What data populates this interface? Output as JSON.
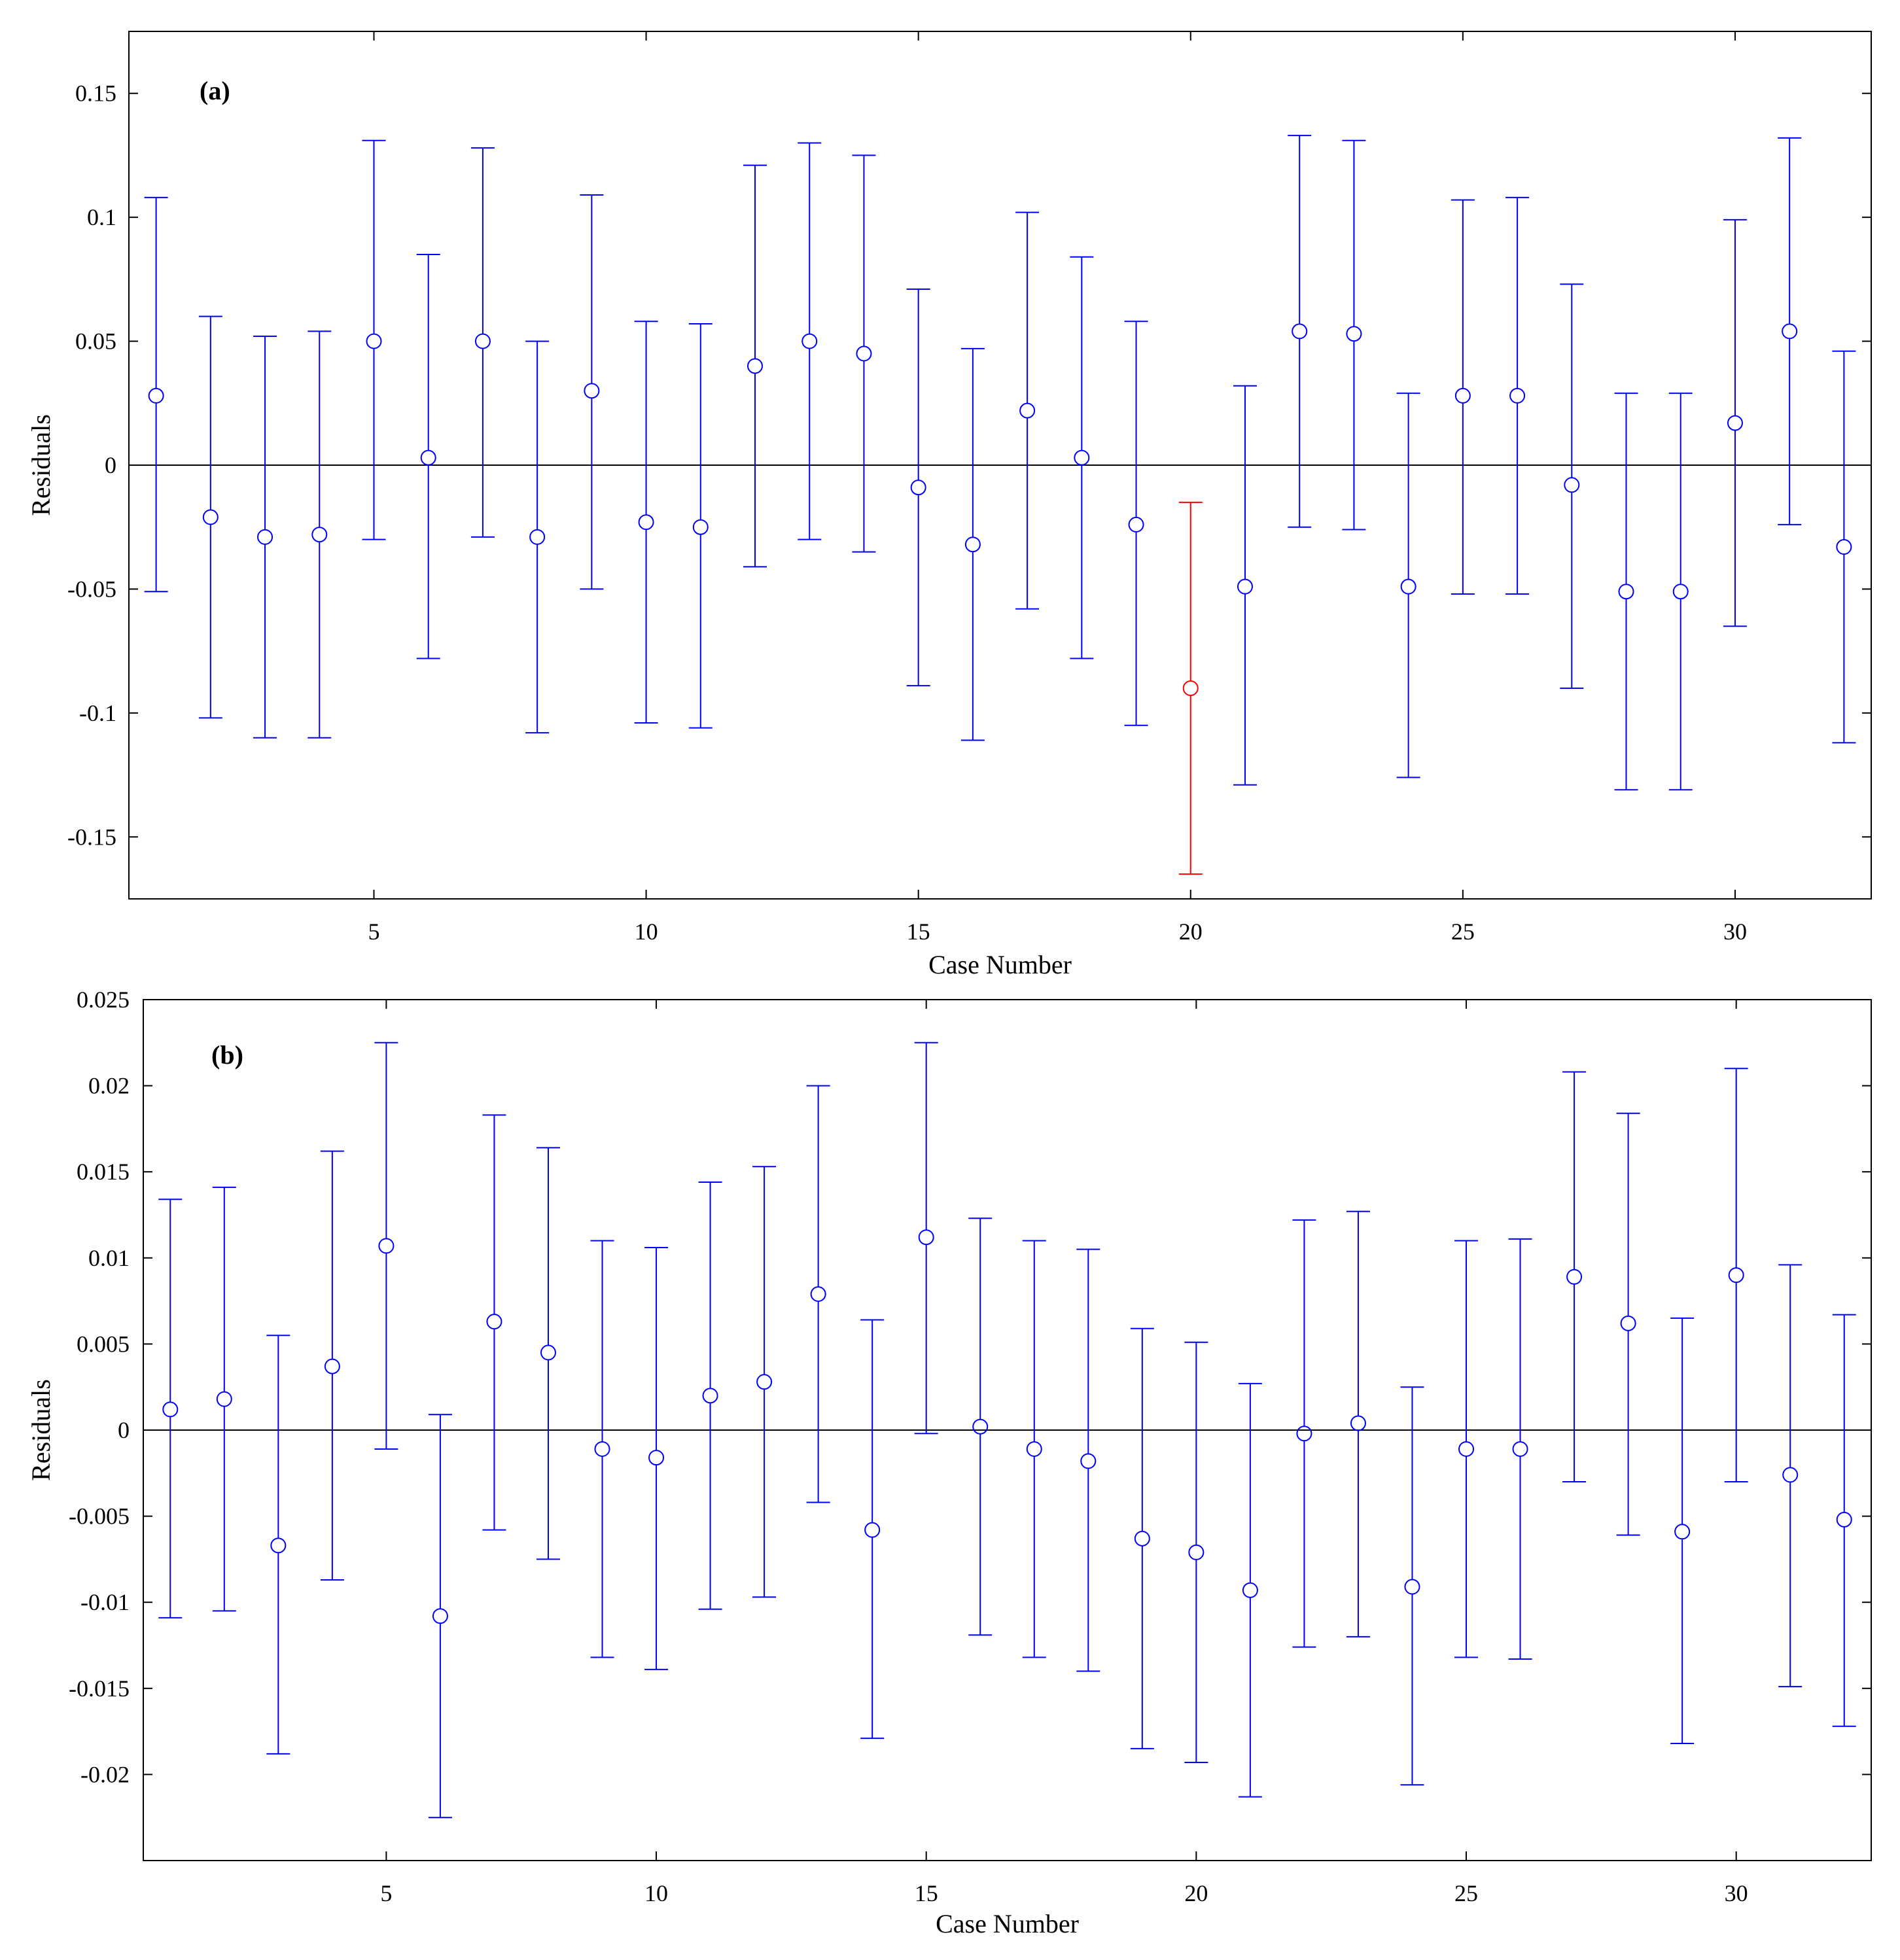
{
  "colors": {
    "series": "#0000ff",
    "outlier": "#ff0000",
    "axis": "#000000",
    "zero_line": "#000000"
  },
  "chart_data": [
    {
      "type": "scatter",
      "subtype": "errorbar",
      "panel_label": "(a)",
      "xlabel": "Case Number",
      "ylabel": "Residuals",
      "xlim": [
        0.5,
        32.5
      ],
      "ylim": [
        -0.175,
        0.175
      ],
      "xticks": [
        5,
        10,
        15,
        20,
        25,
        30
      ],
      "xtick_labels": [
        "5",
        "10",
        "15",
        "20",
        "25",
        "30"
      ],
      "yticks": [
        -0.15,
        -0.1,
        -0.05,
        0,
        0.05,
        0.1,
        0.15
      ],
      "ytick_labels": [
        "-0.15",
        "-0.1",
        "-0.05",
        "0",
        "0.05",
        "0.1",
        "0.15"
      ],
      "zero_line": true,
      "outlier_index": 20,
      "series": [
        {
          "name": "Residuals",
          "x": [
            1,
            2,
            3,
            4,
            5,
            6,
            7,
            8,
            9,
            10,
            11,
            12,
            13,
            14,
            15,
            16,
            17,
            18,
            19,
            20,
            21,
            22,
            23,
            24,
            25,
            26,
            27,
            28,
            29,
            30,
            31,
            32
          ],
          "values": [
            0.028,
            -0.021,
            -0.029,
            -0.028,
            0.05,
            0.003,
            0.05,
            -0.029,
            0.03,
            -0.023,
            -0.025,
            0.04,
            0.05,
            0.045,
            -0.009,
            -0.032,
            0.022,
            0.003,
            -0.024,
            -0.09,
            -0.049,
            0.054,
            0.053,
            -0.049,
            0.028,
            0.028,
            -0.008,
            -0.051,
            -0.051,
            0.017,
            0.054,
            -0.033
          ],
          "lower": [
            -0.051,
            -0.102,
            -0.11,
            -0.11,
            -0.03,
            -0.078,
            -0.029,
            -0.108,
            -0.05,
            -0.104,
            -0.106,
            -0.041,
            -0.03,
            -0.035,
            -0.089,
            -0.111,
            -0.058,
            -0.078,
            -0.105,
            -0.165,
            -0.129,
            -0.025,
            -0.026,
            -0.126,
            -0.052,
            -0.052,
            -0.09,
            -0.131,
            -0.131,
            -0.065,
            -0.024,
            -0.112
          ],
          "upper": [
            0.108,
            0.06,
            0.052,
            0.054,
            0.131,
            0.085,
            0.128,
            0.05,
            0.109,
            0.058,
            0.057,
            0.121,
            0.13,
            0.125,
            0.071,
            0.047,
            0.102,
            0.084,
            0.058,
            -0.015,
            0.032,
            0.133,
            0.131,
            0.029,
            0.107,
            0.108,
            0.073,
            0.029,
            0.029,
            0.099,
            0.132,
            0.046
          ]
        }
      ]
    },
    {
      "type": "scatter",
      "subtype": "errorbar",
      "panel_label": "(b)",
      "xlabel": "Case Number",
      "ylabel": "Residuals",
      "xlim": [
        0.5,
        32.5
      ],
      "ylim": [
        -0.025,
        0.025
      ],
      "xticks": [
        5,
        10,
        15,
        20,
        25,
        30
      ],
      "xtick_labels": [
        "5",
        "10",
        "15",
        "20",
        "25",
        "30"
      ],
      "yticks": [
        -0.02,
        -0.015,
        -0.01,
        -0.005,
        0,
        0.005,
        0.01,
        0.015,
        0.02,
        0.025
      ],
      "ytick_labels": [
        "-0.02",
        "-0.015",
        "-0.01",
        "-0.005",
        "0",
        "0.005",
        "0.01",
        "0.015",
        "0.02",
        "0.025"
      ],
      "zero_line": true,
      "outlier_index": null,
      "series": [
        {
          "name": "Residuals",
          "x": [
            1,
            2,
            3,
            4,
            5,
            6,
            7,
            8,
            9,
            10,
            11,
            12,
            13,
            14,
            15,
            16,
            17,
            18,
            19,
            20,
            21,
            22,
            23,
            24,
            25,
            26,
            27,
            28,
            29,
            30,
            31,
            32
          ],
          "values": [
            0.0012,
            0.0018,
            -0.0067,
            0.0037,
            0.0107,
            -0.0108,
            0.0063,
            0.0045,
            -0.0011,
            -0.0016,
            0.002,
            0.0028,
            0.0079,
            -0.0058,
            0.0112,
            0.0002,
            -0.0011,
            -0.0018,
            -0.0063,
            -0.0071,
            -0.0093,
            -0.0002,
            0.0004,
            -0.0091,
            -0.0011,
            -0.0011,
            0.0089,
            0.0062,
            -0.0059,
            0.009,
            -0.0026,
            -0.0052
          ],
          "lower": [
            -0.0109,
            -0.0105,
            -0.0188,
            -0.0087,
            -0.0011,
            -0.0225,
            -0.0058,
            -0.0075,
            -0.0132,
            -0.0139,
            -0.0104,
            -0.0097,
            -0.0042,
            -0.0179,
            -0.0002,
            -0.0119,
            -0.0132,
            -0.014,
            -0.0185,
            -0.0193,
            -0.0213,
            -0.0126,
            -0.012,
            -0.0206,
            -0.0132,
            -0.0133,
            -0.003,
            -0.0061,
            -0.0182,
            -0.003,
            -0.0149,
            -0.0172
          ],
          "upper": [
            0.0134,
            0.0141,
            0.0055,
            0.0162,
            0.0225,
            0.0009,
            0.0183,
            0.0164,
            0.011,
            0.0106,
            0.0144,
            0.0153,
            0.02,
            0.0064,
            0.0225,
            0.0123,
            0.011,
            0.0105,
            0.0059,
            0.0051,
            0.0027,
            0.0122,
            0.0127,
            0.0025,
            0.011,
            0.0111,
            0.0208,
            0.0184,
            0.0065,
            0.021,
            0.0096,
            0.0067
          ]
        }
      ]
    }
  ]
}
